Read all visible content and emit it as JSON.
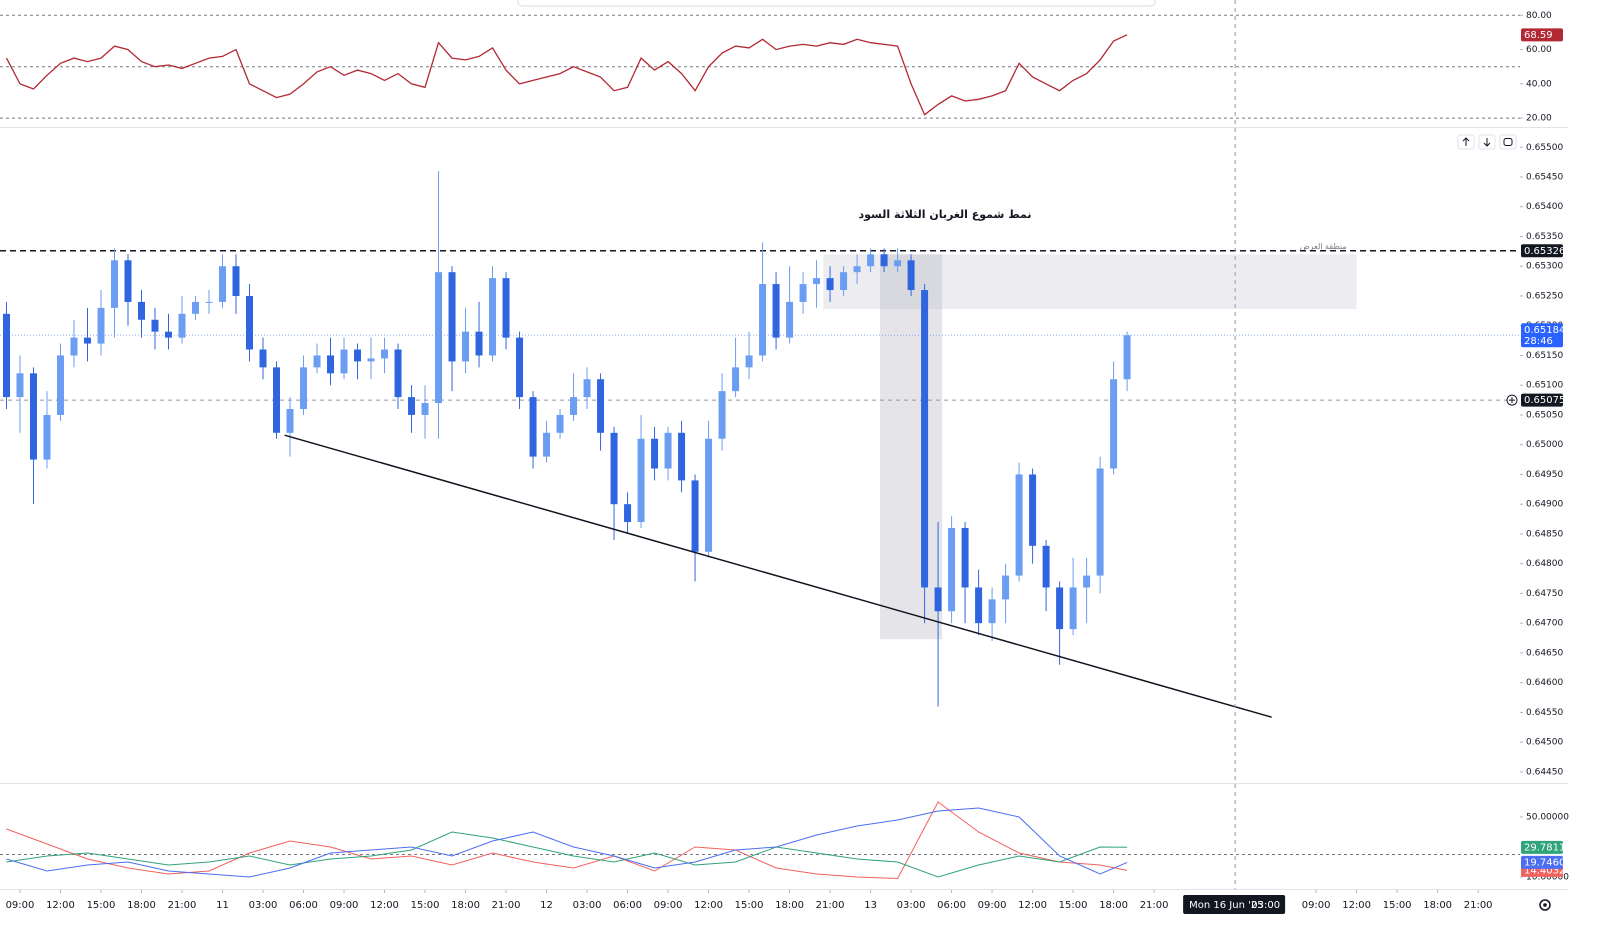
{
  "chart_data": [
    {
      "type": "line",
      "x": [
        -1,
        0,
        1,
        2,
        3,
        4,
        5,
        6,
        7,
        8,
        9,
        10,
        11,
        12,
        13,
        14,
        15,
        16,
        17,
        18,
        19,
        20,
        21,
        22,
        23,
        24,
        25,
        26,
        27,
        28,
        29,
        30,
        31,
        32,
        33,
        34,
        35,
        36,
        37,
        38,
        39,
        40,
        41,
        42,
        43,
        44,
        45,
        46,
        47,
        48,
        49,
        50,
        51,
        52,
        53,
        54,
        55,
        56,
        57,
        58,
        59,
        60,
        61,
        62,
        63,
        64,
        65,
        66,
        67,
        68,
        69,
        70,
        71,
        72,
        73,
        74,
        75,
        76,
        77,
        78,
        79,
        80,
        81,
        82
      ],
      "series": [
        {
          "color": "#b22833",
          "values": [
            55,
            40,
            37,
            45,
            52,
            55,
            53,
            55,
            62,
            60,
            53,
            50,
            51,
            49,
            52,
            55,
            56,
            60,
            40,
            36,
            32,
            34,
            40,
            47,
            50,
            45,
            48,
            46,
            42,
            46,
            40,
            38,
            64,
            55,
            54,
            56,
            61,
            48,
            40,
            42,
            44,
            46,
            50,
            47,
            44,
            36,
            38,
            55,
            48,
            53,
            46,
            36,
            50,
            58,
            62,
            61,
            66,
            60,
            62,
            63,
            62,
            64,
            63,
            66,
            64,
            63,
            62,
            40,
            22,
            28,
            33,
            30,
            31,
            33,
            36,
            52,
            44,
            40,
            36,
            42,
            46,
            54,
            65,
            68.59
          ]
        }
      ],
      "xlim": [
        -1.48,
        111.1
      ],
      "ylim": [
        16,
        86
      ],
      "yticks": [
        {
          "value": 80,
          "label": "80.00"
        },
        {
          "value": 60,
          "label": "60.00"
        },
        {
          "value": 40,
          "label": "40.00"
        },
        {
          "value": 20,
          "label": "20.00"
        }
      ],
      "levels": [
        80,
        50,
        20
      ]
    },
    {
      "type": "candlestick",
      "x": [
        -1,
        0,
        1,
        2,
        3,
        4,
        5,
        6,
        7,
        8,
        9,
        10,
        11,
        12,
        13,
        14,
        15,
        16,
        17,
        18,
        19,
        20,
        21,
        22,
        23,
        24,
        25,
        26,
        27,
        28,
        29,
        30,
        31,
        32,
        33,
        34,
        35,
        36,
        37,
        38,
        39,
        40,
        41,
        42,
        43,
        44,
        45,
        46,
        47,
        48,
        49,
        50,
        51,
        52,
        53,
        54,
        55,
        56,
        57,
        58,
        59,
        60,
        61,
        62,
        63,
        64,
        65,
        66,
        67,
        68,
        69,
        70,
        71,
        72,
        73,
        74,
        75,
        76,
        77,
        78,
        79,
        80,
        81,
        82
      ],
      "open": [
        0.6522,
        0.6508,
        0.6512,
        0.64975,
        0.6505,
        0.6515,
        0.6518,
        0.6517,
        0.6523,
        0.6531,
        0.6524,
        0.6521,
        0.6519,
        0.6518,
        0.6522,
        0.6524,
        0.6524,
        0.653,
        0.6525,
        0.6516,
        0.6513,
        0.6502,
        0.6506,
        0.6513,
        0.6515,
        0.6512,
        0.6516,
        0.6514,
        0.65145,
        0.6516,
        0.6508,
        0.6505,
        0.6507,
        0.6529,
        0.6514,
        0.6519,
        0.6515,
        0.6528,
        0.6518,
        0.6508,
        0.6498,
        0.6502,
        0.6505,
        0.6508,
        0.6511,
        0.6502,
        0.649,
        0.6487,
        0.6501,
        0.6496,
        0.6502,
        0.6494,
        0.6482,
        0.6501,
        0.6509,
        0.6513,
        0.6515,
        0.6527,
        0.6518,
        0.6524,
        0.6527,
        0.6528,
        0.6526,
        0.6529,
        0.653,
        0.6532,
        0.653,
        0.6531,
        0.6526,
        0.6476,
        0.6472,
        0.6486,
        0.6476,
        0.647,
        0.6474,
        0.6478,
        0.6495,
        0.6483,
        0.6476,
        0.6469,
        0.6476,
        0.6478,
        0.6496,
        0.6511
      ],
      "high": [
        0.6524,
        0.6515,
        0.6513,
        0.6509,
        0.6517,
        0.6521,
        0.6523,
        0.6526,
        0.6533,
        0.6532,
        0.6526,
        0.6523,
        0.6522,
        0.6525,
        0.6525,
        0.6526,
        0.6532,
        0.6532,
        0.6527,
        0.6518,
        0.6514,
        0.6508,
        0.6515,
        0.6517,
        0.6518,
        0.6518,
        0.6517,
        0.6518,
        0.6518,
        0.6517,
        0.651,
        0.651,
        0.6546,
        0.653,
        0.6523,
        0.6524,
        0.653,
        0.6529,
        0.6519,
        0.6509,
        0.6504,
        0.6506,
        0.6512,
        0.6513,
        0.6512,
        0.6503,
        0.6492,
        0.6505,
        0.6503,
        0.6503,
        0.6504,
        0.6495,
        0.6504,
        0.6512,
        0.6518,
        0.6519,
        0.6534,
        0.6529,
        0.653,
        0.6529,
        0.6531,
        0.653,
        0.653,
        0.6532,
        0.6533,
        0.6533,
        0.6533,
        0.6532,
        0.6527,
        0.6487,
        0.6488,
        0.6487,
        0.6479,
        0.6476,
        0.648,
        0.6497,
        0.6496,
        0.6484,
        0.6477,
        0.6481,
        0.6481,
        0.6498,
        0.6514,
        0.6519
      ],
      "low": [
        0.6506,
        0.6502,
        0.649,
        0.6496,
        0.6504,
        0.6513,
        0.6514,
        0.6515,
        0.6518,
        0.652,
        0.6518,
        0.6516,
        0.6516,
        0.6517,
        0.6521,
        0.6522,
        0.6523,
        0.6522,
        0.6514,
        0.6511,
        0.6501,
        0.6498,
        0.6505,
        0.6512,
        0.651,
        0.6511,
        0.6511,
        0.6511,
        0.6512,
        0.6506,
        0.6502,
        0.6501,
        0.6501,
        0.6509,
        0.6512,
        0.6513,
        0.6514,
        0.6516,
        0.6506,
        0.6496,
        0.6497,
        0.6501,
        0.6504,
        0.6506,
        0.6499,
        0.6484,
        0.6485,
        0.6486,
        0.6494,
        0.6494,
        0.6492,
        0.6477,
        0.6481,
        0.6499,
        0.6508,
        0.6511,
        0.6514,
        0.6516,
        0.6517,
        0.6522,
        0.6523,
        0.6524,
        0.6525,
        0.6527,
        0.6529,
        0.6529,
        0.6529,
        0.6525,
        0.647,
        0.6456,
        0.647,
        0.647,
        0.6468,
        0.6467,
        0.647,
        0.6477,
        0.648,
        0.6472,
        0.6463,
        0.6468,
        0.647,
        0.6475,
        0.6495,
        0.6509
      ],
      "close": [
        0.6508,
        0.6512,
        0.64975,
        0.6505,
        0.6515,
        0.6518,
        0.6517,
        0.6523,
        0.6531,
        0.6524,
        0.6521,
        0.6519,
        0.6518,
        0.6522,
        0.6524,
        0.6524,
        0.653,
        0.6525,
        0.6516,
        0.6513,
        0.6502,
        0.6506,
        0.6513,
        0.6515,
        0.6512,
        0.6516,
        0.6514,
        0.65145,
        0.6516,
        0.6508,
        0.6505,
        0.6507,
        0.6529,
        0.6514,
        0.6519,
        0.6515,
        0.6528,
        0.6518,
        0.6508,
        0.6498,
        0.6502,
        0.6505,
        0.6508,
        0.6511,
        0.6502,
        0.649,
        0.6487,
        0.6501,
        0.6496,
        0.6502,
        0.6494,
        0.6482,
        0.6501,
        0.6509,
        0.6513,
        0.6515,
        0.6527,
        0.6518,
        0.6524,
        0.6527,
        0.6528,
        0.6526,
        0.6529,
        0.653,
        0.6532,
        0.653,
        0.6531,
        0.6526,
        0.6476,
        0.6472,
        0.6486,
        0.6476,
        0.647,
        0.6474,
        0.6478,
        0.6495,
        0.6483,
        0.6476,
        0.6469,
        0.6476,
        0.6478,
        0.6496,
        0.6511,
        0.65184
      ],
      "colors": {
        "up": "#6b9df2",
        "down": "#2f66e0"
      },
      "xlim": [
        -1.48,
        111.1
      ],
      "ylim": [
        0.64433,
        0.65529
      ],
      "yticks": [
        {
          "value": 0.655,
          "label": "0.65500"
        },
        {
          "value": 0.6545,
          "label": "0.65450"
        },
        {
          "value": 0.654,
          "label": "0.65400"
        },
        {
          "value": 0.6535,
          "label": "0.65350"
        },
        {
          "value": 0.653,
          "label": "0.65300"
        },
        {
          "value": 0.6525,
          "label": "0.65250"
        },
        {
          "value": 0.652,
          "label": "0.65200"
        },
        {
          "value": 0.6515,
          "label": "0.65150"
        },
        {
          "value": 0.651,
          "label": "0.65100"
        },
        {
          "value": 0.6505,
          "label": "0.65050"
        },
        {
          "value": 0.65,
          "label": "0.65000"
        },
        {
          "value": 0.6495,
          "label": "0.64950"
        },
        {
          "value": 0.649,
          "label": "0.64900"
        },
        {
          "value": 0.6485,
          "label": "0.64850"
        },
        {
          "value": 0.648,
          "label": "0.64800"
        },
        {
          "value": 0.6475,
          "label": "0.64750"
        },
        {
          "value": 0.647,
          "label": "0.64700"
        },
        {
          "value": 0.6465,
          "label": "0.64650"
        },
        {
          "value": 0.646,
          "label": "0.64600"
        },
        {
          "value": 0.6455,
          "label": "0.64550"
        },
        {
          "value": 0.645,
          "label": "0.64500"
        },
        {
          "value": 0.6445,
          "label": "0.64450"
        }
      ],
      "xticks": [
        {
          "value": 0,
          "label": "09:00"
        },
        {
          "value": 3,
          "label": "12:00"
        },
        {
          "value": 6,
          "label": "15:00"
        },
        {
          "value": 9,
          "label": "18:00"
        },
        {
          "value": 12,
          "label": "21:00"
        },
        {
          "value": 15,
          "label": "11"
        },
        {
          "value": 18,
          "label": "03:00"
        },
        {
          "value": 21,
          "label": "06:00"
        },
        {
          "value": 24,
          "label": "09:00"
        },
        {
          "value": 27,
          "label": "12:00"
        },
        {
          "value": 30,
          "label": "15:00"
        },
        {
          "value": 33,
          "label": "18:00"
        },
        {
          "value": 36,
          "label": "21:00"
        },
        {
          "value": 39,
          "label": "12"
        },
        {
          "value": 42,
          "label": "03:00"
        },
        {
          "value": 45,
          "label": "06:00"
        },
        {
          "value": 48,
          "label": "09:00"
        },
        {
          "value": 51,
          "label": "12:00"
        },
        {
          "value": 54,
          "label": "15:00"
        },
        {
          "value": 57,
          "label": "18:00"
        },
        {
          "value": 60,
          "label": "21:00"
        },
        {
          "value": 63,
          "label": "13"
        },
        {
          "value": 66,
          "label": "03:00"
        },
        {
          "value": 69,
          "label": "06:00"
        },
        {
          "value": 72,
          "label": "09:00"
        },
        {
          "value": 75,
          "label": "12:00"
        },
        {
          "value": 78,
          "label": "15:00"
        },
        {
          "value": 81,
          "label": "18:00"
        },
        {
          "value": 84,
          "label": "21:00"
        },
        {
          "value": 96,
          "label": "09:00"
        },
        {
          "value": 99,
          "label": "12:00"
        },
        {
          "value": 102,
          "label": "15:00"
        },
        {
          "value": 105,
          "label": "18:00"
        },
        {
          "value": 108,
          "label": "21:00"
        }
      ],
      "hline": 0.65326,
      "countdown": "28:46",
      "crosshair": {
        "x": 90,
        "x_label": "Mon 16 Jun '25",
        "x_time": "03:00",
        "y": 0.65075
      },
      "annotation": "نمط شموع الغربان الثلاثة السود",
      "zone": {
        "label": "منطقة العرض",
        "x": [
          59.5,
          99
        ],
        "y": [
          0.65228,
          0.6532
        ]
      },
      "highlight": {
        "x": [
          63.7,
          68.3
        ],
        "y": [
          0.64673,
          0.6532
        ]
      },
      "trendline": {
        "x": [
          19.6,
          92.7
        ],
        "y": [
          0.65016,
          0.64542
        ]
      }
    },
    {
      "type": "line",
      "x": [
        -1,
        2,
        5,
        8,
        11,
        14,
        17,
        20,
        23,
        26,
        29,
        32,
        35,
        38,
        41,
        44,
        47,
        50,
        53,
        56,
        59,
        62,
        65,
        68,
        71,
        74,
        77,
        80,
        82
      ],
      "series": [
        {
          "color": "#f2625e",
          "values": [
            42,
            32,
            22,
            16,
            12,
            14,
            26,
            34,
            30,
            22,
            24,
            18,
            26,
            20,
            16,
            24,
            14,
            30,
            28,
            16,
            12,
            10,
            9,
            60,
            40,
            26,
            20,
            18,
            14.4032
          ],
          "value_labels": [
            null,
            null,
            null,
            null,
            null,
            null,
            null,
            null,
            null,
            null,
            null,
            null,
            null,
            null,
            null,
            null,
            null,
            null,
            null,
            null,
            null,
            null,
            null,
            null,
            null,
            null,
            null,
            null,
            "14.40320"
          ]
        },
        {
          "color": "#2fa37a",
          "values": [
            20,
            24,
            26,
            22,
            18,
            20,
            24,
            18,
            22,
            24,
            28,
            40,
            36,
            30,
            24,
            20,
            26,
            18,
            20,
            30,
            26,
            22,
            20,
            10,
            18,
            24,
            20,
            30,
            29.78116
          ]
        },
        {
          "color": "#4b6ef2",
          "values": [
            22,
            14,
            18,
            20,
            14,
            12,
            10,
            16,
            26,
            28,
            30,
            24,
            34,
            40,
            30,
            24,
            16,
            20,
            28,
            30,
            38,
            44,
            48,
            54,
            56,
            50,
            24,
            12,
            19.74605
          ]
        }
      ],
      "xlim": [
        -1.48,
        111.1
      ],
      "ylim": [
        4.7,
        71.3
      ],
      "yticks": [
        {
          "value": 50,
          "label": "50.00000"
        },
        {
          "value": 10,
          "label": "10.00000"
        }
      ],
      "levels": [
        25
      ]
    }
  ]
}
